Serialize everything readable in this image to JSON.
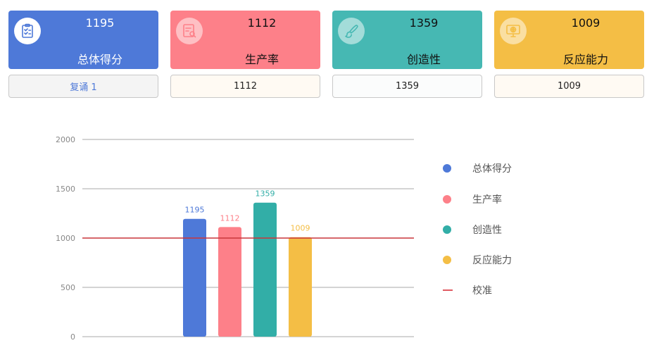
{
  "cards": [
    {
      "value": "1195",
      "label": "总体得分",
      "bg": "#4e79d8",
      "text_color": "#ffffff",
      "icon": "clipboard-check-icon"
    },
    {
      "value": "1112",
      "label": "生产率",
      "bg": "#fd8089",
      "text_color": "#111111",
      "icon": "list-search-icon"
    },
    {
      "value": "1359",
      "label": "创造性",
      "bg": "#46b8b3",
      "text_color": "#111111",
      "icon": "brush-icon"
    },
    {
      "value": "1009",
      "label": "反应能力",
      "bg": "#f4be45",
      "text_color": "#111111",
      "icon": "monitor-globe-icon"
    }
  ],
  "subboxes": [
    {
      "text": "复诵 1",
      "bg": "#f4f4f4",
      "color": "#4e79d8"
    },
    {
      "text": "1112",
      "bg": "#fffaf3",
      "color": "#222222"
    },
    {
      "text": "1359",
      "bg": "#fbfcfc",
      "color": "#222222"
    },
    {
      "text": "1009",
      "bg": "#fffaf3",
      "color": "#222222"
    }
  ],
  "chart_data": {
    "type": "bar",
    "categories": [
      "总体得分",
      "生产率",
      "创造性",
      "反应能力"
    ],
    "values": [
      1195,
      1112,
      1359,
      1009
    ],
    "colors": [
      "#4e79d8",
      "#fd8089",
      "#32aea7",
      "#f4be45"
    ],
    "yticks": [
      "0",
      "500",
      "1000",
      "1500",
      "2000"
    ],
    "ylim": [
      0,
      2000
    ],
    "reference_line": {
      "name": "校准",
      "value": 1000,
      "color": "#c9353a"
    },
    "grid": true,
    "legend_position": "right"
  },
  "legend": [
    {
      "label": "总体得分",
      "color": "#4e79d8",
      "shape": "dot"
    },
    {
      "label": "生产率",
      "color": "#fd8089",
      "shape": "dot"
    },
    {
      "label": "创造性",
      "color": "#32aea7",
      "shape": "dot"
    },
    {
      "label": "反应能力",
      "color": "#f4be45",
      "shape": "dot"
    },
    {
      "label": "校准",
      "color": "#e05a61",
      "shape": "line"
    }
  ]
}
